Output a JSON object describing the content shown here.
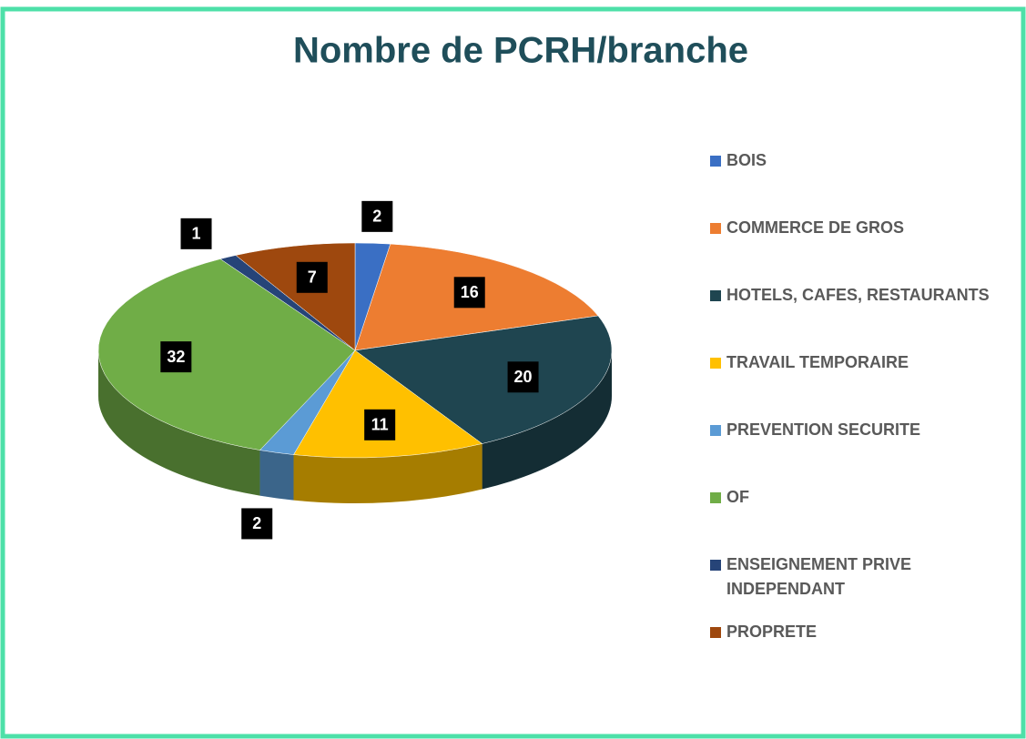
{
  "chart_data": {
    "type": "pie",
    "title": "Nombre de PCRH/branche",
    "categories": [
      "BOIS",
      "COMMERCE DE GROS",
      "HOTELS, CAFES, RESTAURANTS",
      "TRAVAIL TEMPORAIRE",
      "PREVENTION SECURITE",
      "OF",
      "ENSEIGNEMENT PRIVE INDEPENDANT",
      "PROPRETE"
    ],
    "values": [
      2,
      16,
      20,
      11,
      2,
      32,
      1,
      7
    ],
    "colors": [
      "#3a6fc4",
      "#ed7d31",
      "#1f4550",
      "#ffc000",
      "#5b9bd5",
      "#70ad47",
      "#264478",
      "#9e480e"
    ],
    "legend": "right"
  }
}
